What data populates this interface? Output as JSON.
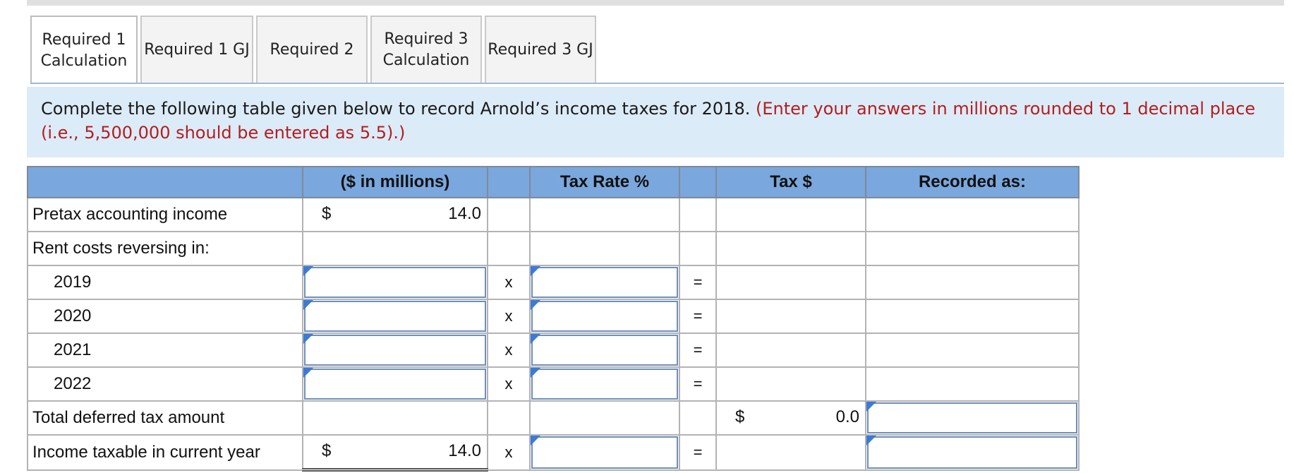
{
  "tabs": [
    {
      "line1": "Required 1",
      "line2": "Calculation",
      "active": true
    },
    {
      "line1": "Required 1 GJ",
      "line2": ""
    },
    {
      "line1": "Required 2",
      "line2": ""
    },
    {
      "line1": "Required 3",
      "line2": "Calculation"
    },
    {
      "line1": "Required 3 GJ",
      "line2": ""
    }
  ],
  "instruction": {
    "main": "Complete the following table given below to record Arnold’s income taxes for 2018.",
    "note": "(Enter your answers in millions rounded to 1 decimal place (i.e., 5,500,000 should be entered as 5.5).)"
  },
  "table": {
    "headers": {
      "amount": "($ in millions)",
      "rate": "Tax Rate %",
      "tax": "Tax $",
      "recorded": "Recorded as:"
    },
    "rows": {
      "pretax": {
        "label": "Pretax accounting income",
        "currency": "$",
        "amount": "14.0"
      },
      "rent": {
        "label": "Rent costs reversing in:"
      },
      "y2019": {
        "label": "2019"
      },
      "y2020": {
        "label": "2020"
      },
      "y2021": {
        "label": "2021"
      },
      "y2022": {
        "label": "2022"
      },
      "total": {
        "label": "Total deferred tax amount",
        "currency": "$",
        "tax": "0.0"
      },
      "income": {
        "label": "Income taxable in current year",
        "currency": "$",
        "amount": "14.0"
      }
    },
    "times_symbol": "x",
    "equals_symbol": "="
  },
  "colors": {
    "header_bg": "#7aa7dd",
    "instruction_bg": "#dcebf8",
    "note_text": "#b21e1e",
    "input_marker": "#3c7ad6"
  }
}
